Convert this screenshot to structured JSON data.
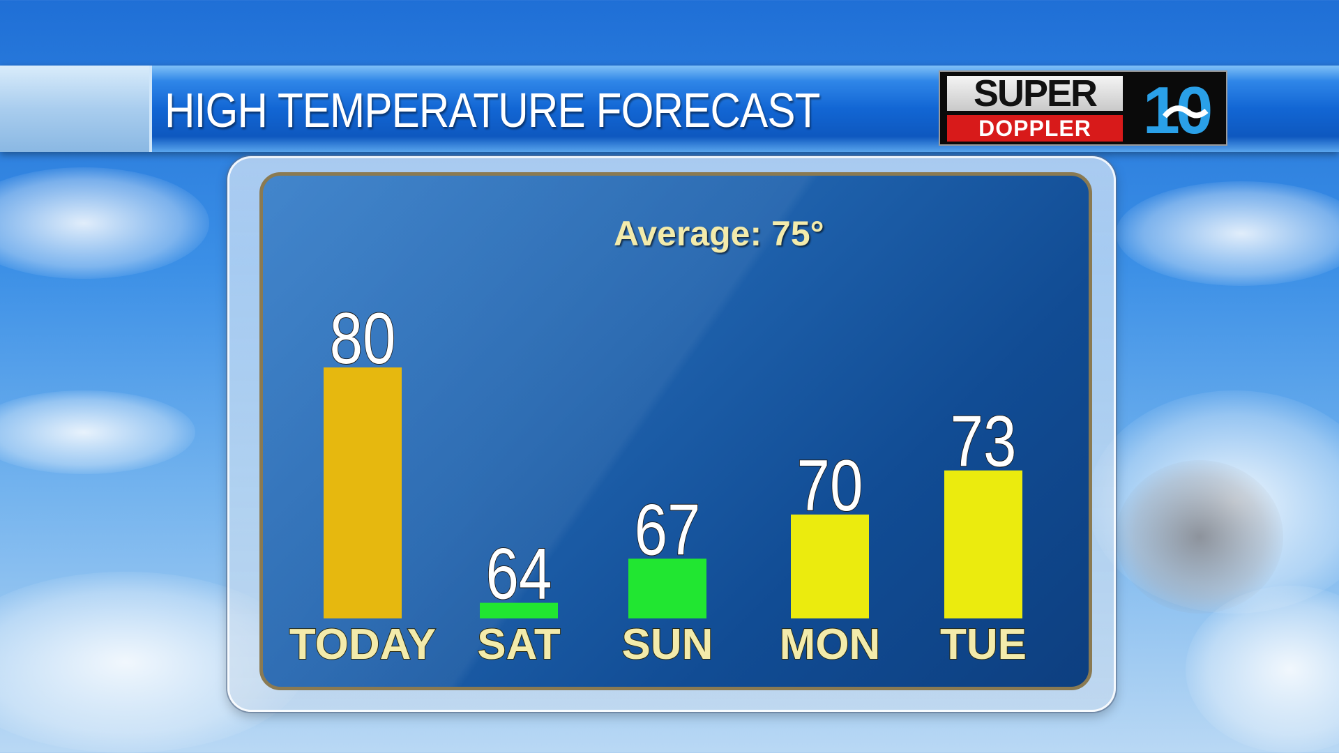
{
  "header": {
    "title": "HIGH TEMPERATURE FORECAST"
  },
  "logo": {
    "line1": "SUPER",
    "line2": "DOPPLER",
    "channel": "10"
  },
  "average_label": "Average: 75°",
  "chart_data": {
    "type": "bar",
    "categories": [
      "TODAY",
      "SAT",
      "SUN",
      "MON",
      "TUE"
    ],
    "values": [
      80,
      64,
      67,
      70,
      73
    ],
    "colors": [
      "#e6b80f",
      "#21e631",
      "#21e631",
      "#ebeb0e",
      "#ebeb0e"
    ],
    "value_labels": [
      "80",
      "64",
      "67",
      "70",
      "73"
    ],
    "ylim": [
      50,
      85
    ]
  }
}
